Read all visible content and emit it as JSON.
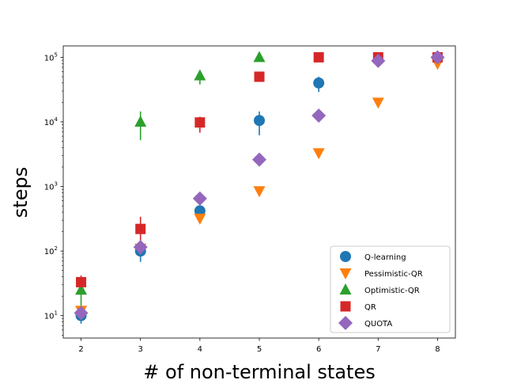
{
  "chart_data": {
    "type": "scatter",
    "title": "",
    "xlabel": "# of non-terminal states",
    "ylabel": "steps",
    "y_scale": "log",
    "xlim": [
      1.7,
      8.3
    ],
    "ylim": [
      4.5,
      150000
    ],
    "x_ticks": [
      2,
      3,
      4,
      5,
      6,
      7,
      8
    ],
    "x_tick_labels": [
      "2",
      "3",
      "4",
      "5",
      "6",
      "7",
      "8"
    ],
    "y_ticks": [
      10,
      100,
      1000,
      10000,
      100000
    ],
    "y_tick_labels": [
      {
        "base": "10",
        "exp": "1"
      },
      {
        "base": "10",
        "exp": "2"
      },
      {
        "base": "10",
        "exp": "3"
      },
      {
        "base": "10",
        "exp": "4"
      },
      {
        "base": "10",
        "exp": "5"
      }
    ],
    "grid": false,
    "legend_position": "bottom-right",
    "series": [
      {
        "name": "Q-learning",
        "marker": "circle",
        "color": "#1f77b4",
        "x": [
          2,
          3,
          4,
          5,
          6
        ],
        "y": [
          10,
          100,
          420,
          10500,
          40000
        ],
        "err_low": [
          7.5,
          68,
          370,
          6200,
          29000
        ],
        "err_high": [
          12,
          125,
          470,
          14500,
          50000
        ]
      },
      {
        "name": "Pessimistic-QR",
        "marker": "triangle-down",
        "color": "#ff7f0e",
        "x": [
          2,
          3,
          4,
          5,
          6,
          7,
          8
        ],
        "y": [
          12,
          110,
          320,
          850,
          3300,
          20000,
          80000
        ],
        "err_low": null,
        "err_high": null
      },
      {
        "name": "Optimistic-QR",
        "marker": "triangle-up",
        "color": "#2ca02c",
        "x": [
          2,
          3,
          4,
          5
        ],
        "y": [
          25,
          10000,
          52000,
          100000
        ],
        "err_low": [
          13,
          5200,
          38000,
          100000
        ],
        "err_high": [
          38,
          14500,
          62000,
          100000
        ]
      },
      {
        "name": "QR",
        "marker": "square",
        "color": "#d62728",
        "x": [
          2,
          3,
          4,
          5,
          6,
          7,
          8
        ],
        "y": [
          33,
          220,
          9800,
          50000,
          100000,
          100000,
          100000
        ],
        "err_low": [
          26,
          140,
          6800,
          50000,
          100000,
          100000,
          100000
        ],
        "err_high": [
          42,
          340,
          12000,
          50000,
          100000,
          100000,
          100000
        ]
      },
      {
        "name": "QUOTA",
        "marker": "diamond",
        "color": "#9467bd",
        "x": [
          2,
          3,
          4,
          5,
          6,
          7,
          8
        ],
        "y": [
          11,
          115,
          650,
          2600,
          12500,
          88000,
          100000
        ],
        "err_low": null,
        "err_high": null
      }
    ]
  }
}
